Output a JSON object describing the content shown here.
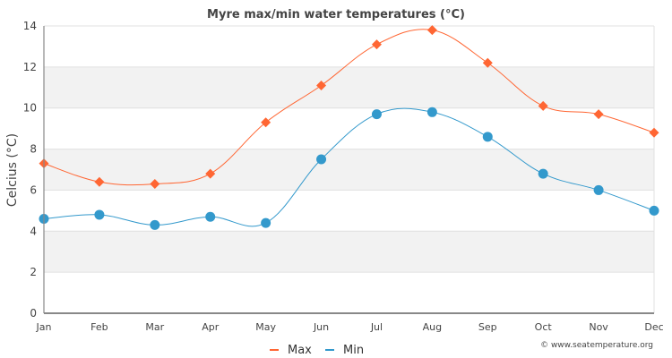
{
  "chart_data": {
    "type": "line",
    "title": "Myre max/min water temperatures (°C)",
    "xlabel": "",
    "ylabel": "Celcius (°C)",
    "categories": [
      "Jan",
      "Feb",
      "Mar",
      "Apr",
      "May",
      "Jun",
      "Jul",
      "Aug",
      "Sep",
      "Oct",
      "Nov",
      "Dec"
    ],
    "ylim": [
      0,
      14
    ],
    "yticks": [
      "0",
      "2",
      "4",
      "6",
      "8",
      "10",
      "12",
      "14"
    ],
    "grid": true,
    "legend_position": "bottom-center",
    "series": [
      {
        "name": "Max",
        "color": "#ff6633",
        "marker": "diamond",
        "values": [
          7.3,
          6.4,
          6.3,
          6.8,
          9.3,
          11.1,
          13.1,
          13.8,
          12.2,
          10.1,
          9.7,
          8.8
        ]
      },
      {
        "name": "Min",
        "color": "#3399cc",
        "marker": "circle",
        "values": [
          4.6,
          4.8,
          4.3,
          4.7,
          4.4,
          7.5,
          9.7,
          9.8,
          8.6,
          6.8,
          6.0,
          5.0
        ]
      }
    ],
    "credit": "© www.seatemperature.org"
  },
  "colors": {
    "band": "#f2f2f2",
    "grid": "#e0e0e0",
    "axis": "#888888"
  }
}
